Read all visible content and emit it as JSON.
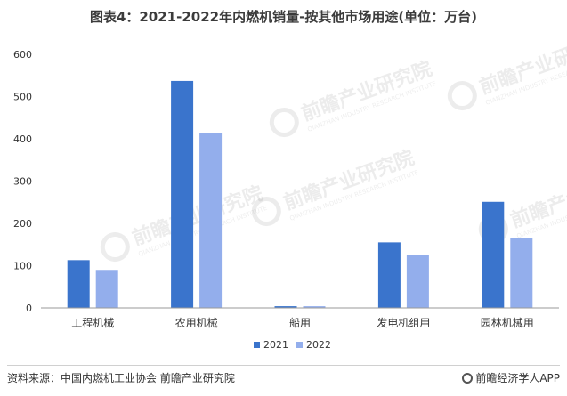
{
  "title": "图表4：2021-2022年内燃机销量-按其他市场用途(单位：万台)",
  "watermark": {
    "text": "前瞻产业研究院",
    "subtext": "QIANZHAN INDUSTRY RESEARCH INSTITUTE"
  },
  "chart_data": {
    "type": "bar",
    "categories": [
      "工程机械",
      "农用机械",
      "船用",
      "发电机组用",
      "园林机械用"
    ],
    "series": [
      {
        "name": "2021",
        "color": "#3a74cc",
        "values": [
          113,
          537,
          4,
          155,
          251
        ]
      },
      {
        "name": "2022",
        "color": "#93aeec",
        "values": [
          90,
          413,
          4,
          125,
          165
        ]
      }
    ],
    "ylim": [
      0,
      600
    ],
    "yticks": [
      "0",
      "100",
      "200",
      "300",
      "400",
      "500",
      "600"
    ],
    "grid": false,
    "legend": "bottom"
  },
  "footer": {
    "source": "资料来源：中国内燃机工业协会 前瞻产业研究院",
    "brand": "前瞻经济学人APP"
  }
}
